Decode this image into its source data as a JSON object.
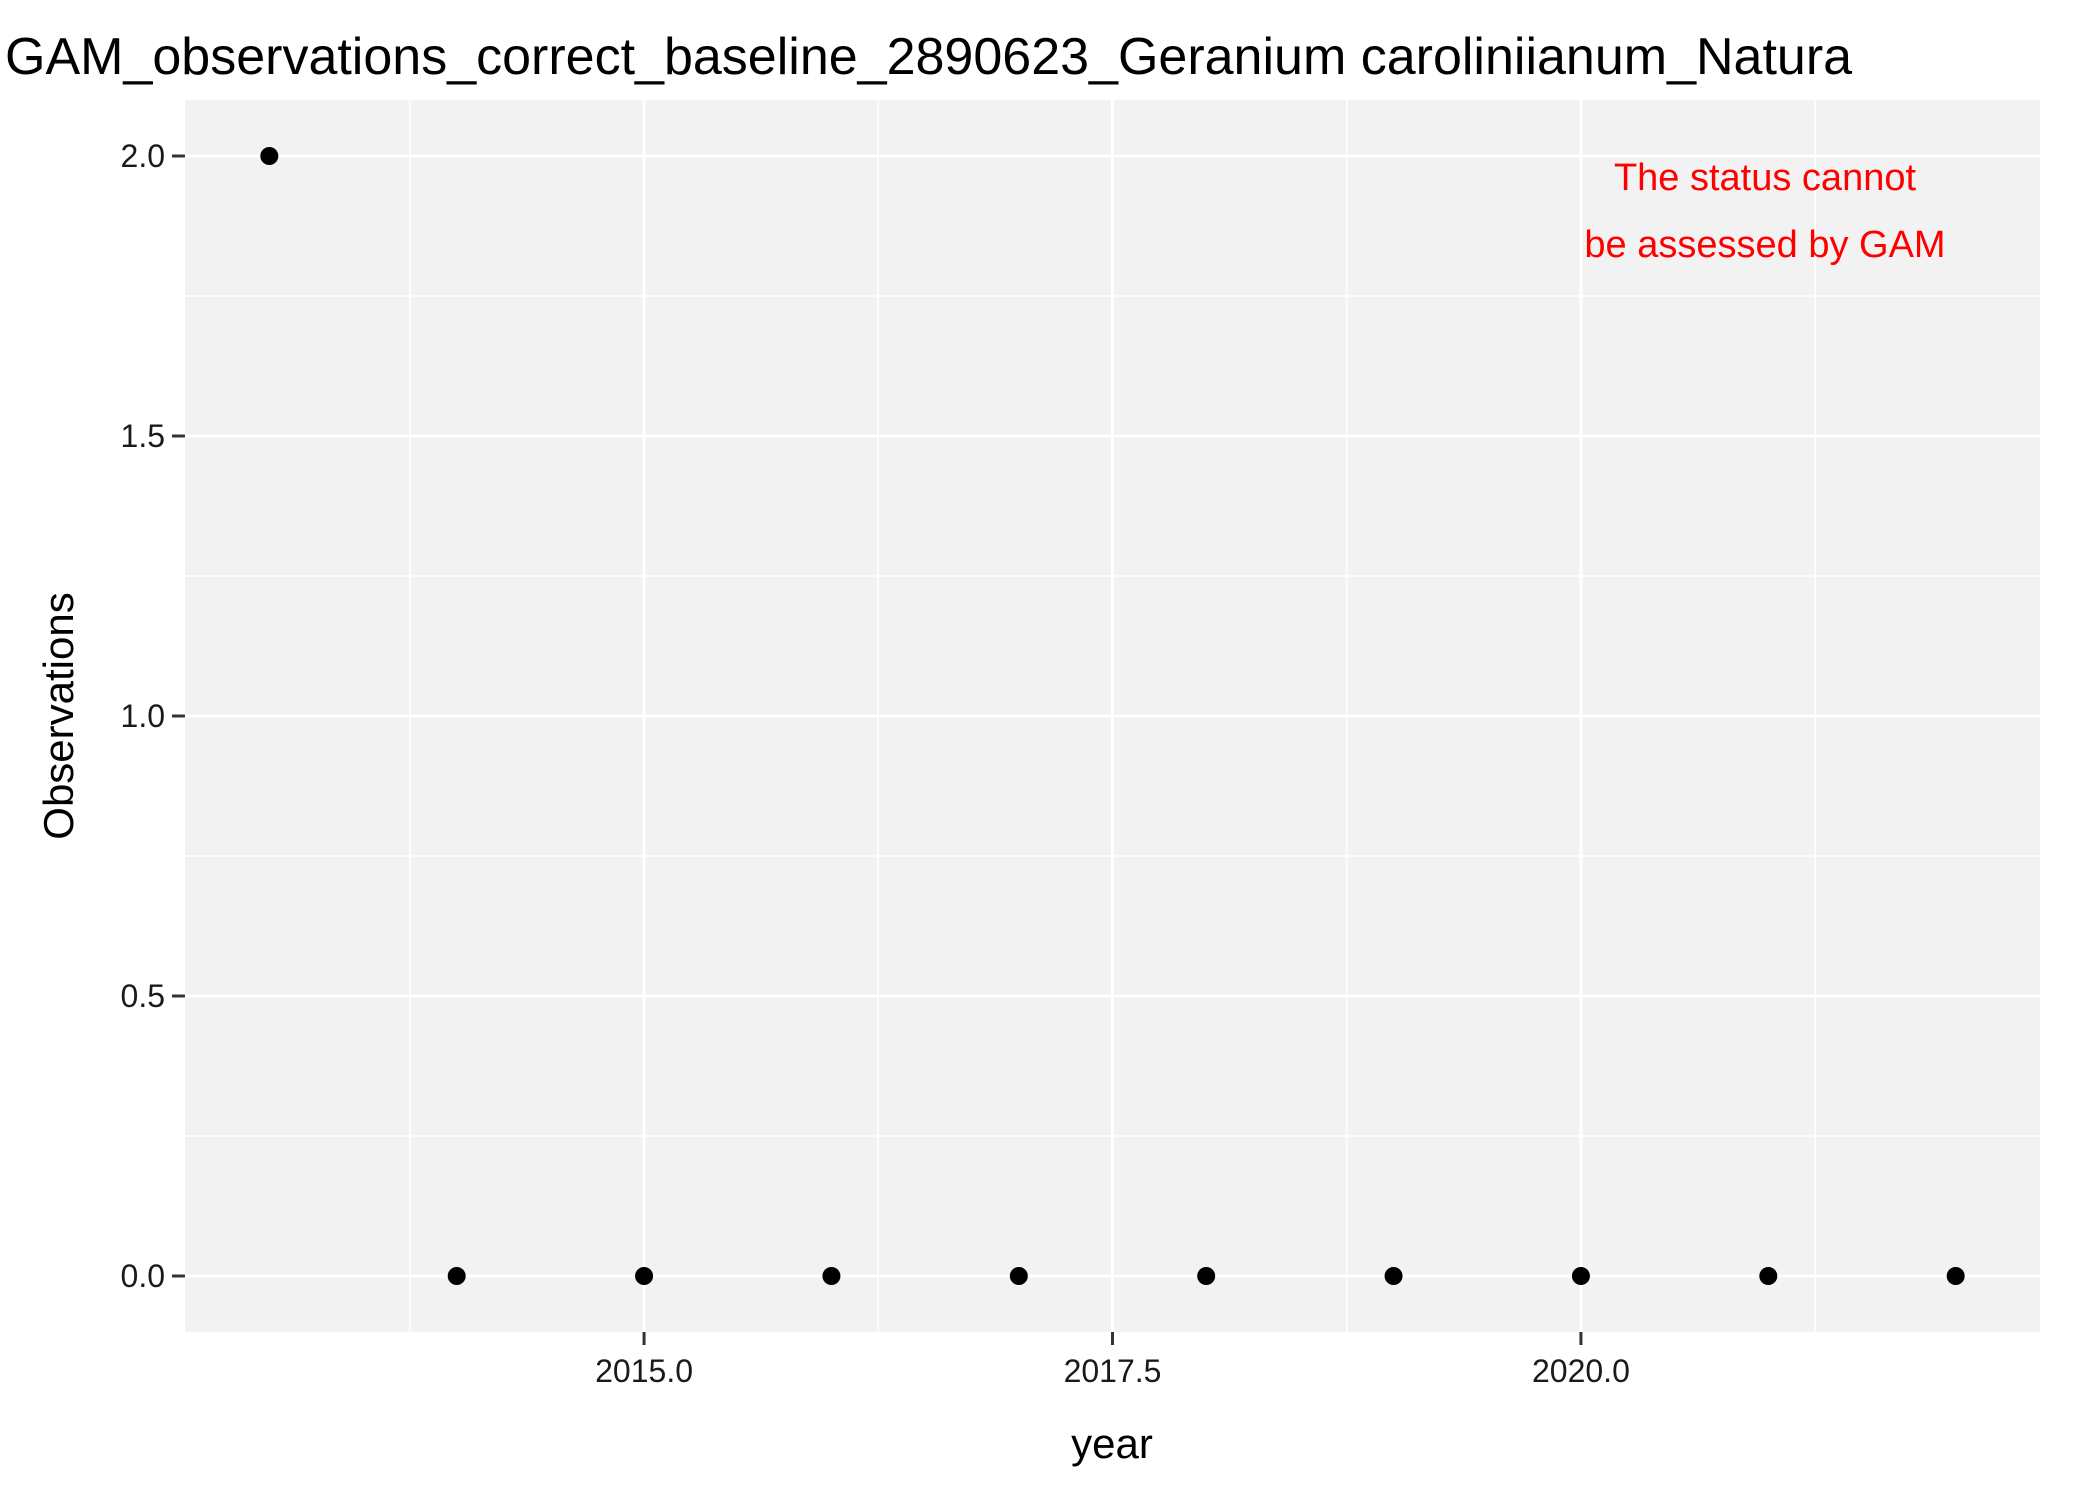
{
  "chart_data": {
    "type": "scatter",
    "title": "GAM_observations_correct_baseline_2890623_Geranium caroliniianum_Natura",
    "xlabel": "year",
    "ylabel": "Observations",
    "x": [
      2013,
      2014,
      2015,
      2016,
      2017,
      2018,
      2019,
      2020,
      2021,
      2022
    ],
    "y": [
      2,
      0,
      0,
      0,
      0,
      0,
      0,
      0,
      0,
      0
    ],
    "xlim": [
      2012.55,
      2022.45
    ],
    "ylim": [
      -0.1,
      2.1
    ],
    "x_ticks": [
      2015.0,
      2017.5,
      2020.0
    ],
    "x_tick_labels": [
      "2015.0",
      "2017.5",
      "2020.0"
    ],
    "y_ticks": [
      0.0,
      0.5,
      1.0,
      1.5,
      2.0
    ],
    "y_tick_labels": [
      "0.0",
      "0.5",
      "1.0",
      "1.5",
      "2.0"
    ],
    "grid": true,
    "legend": "none",
    "annotation": {
      "lines": [
        "The status cannot",
        "be assessed by GAM"
      ],
      "color": "#ff0000"
    },
    "colors": {
      "panel_background": "#f2f2f2",
      "grid": "#ffffff",
      "points": "#000000"
    }
  }
}
